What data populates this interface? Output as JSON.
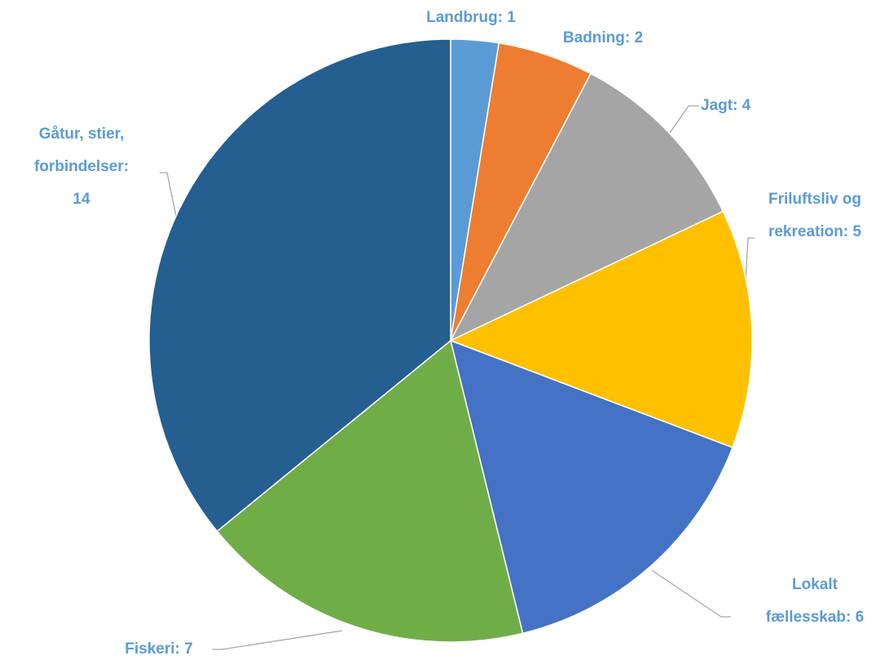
{
  "chart_data": {
    "type": "pie",
    "values": [
      1,
      2,
      4,
      5,
      6,
      7,
      14
    ],
    "value_labels": [
      [
        "Landbrug: 1"
      ],
      [
        "Badning: 2"
      ],
      [
        "Jagt: 4"
      ],
      [
        "Friluftsliv og",
        "rekreation: 5"
      ],
      [
        "Lokalt",
        "fællesskab: 6"
      ],
      [
        "Fiskeri: 7"
      ],
      [
        "Gåtur, stier,",
        "forbindelser:",
        "14"
      ]
    ],
    "colors": [
      "#5b9bd5",
      "#ed7d31",
      "#a5a5a5",
      "#ffc000",
      "#4472c4",
      "#70ad47",
      "#255e91"
    ]
  }
}
